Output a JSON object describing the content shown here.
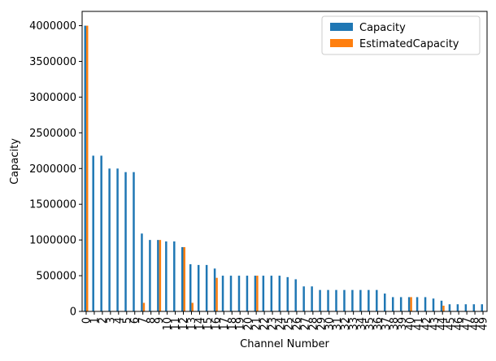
{
  "chart_data": {
    "type": "bar",
    "xlabel": "Channel Number",
    "ylabel": "Capacity",
    "ylim": [
      0,
      4200000
    ],
    "yticks": [
      0,
      500000,
      1000000,
      1500000,
      2000000,
      2500000,
      3000000,
      3500000,
      4000000
    ],
    "categories": [
      "0",
      "1",
      "2",
      "3",
      "4",
      "5",
      "6",
      "7",
      "8",
      "9",
      "10",
      "11",
      "12",
      "13",
      "14",
      "15",
      "16",
      "17",
      "18",
      "19",
      "20",
      "21",
      "22",
      "23",
      "24",
      "25",
      "26",
      "27",
      "28",
      "29",
      "30",
      "31",
      "32",
      "33",
      "34",
      "35",
      "36",
      "37",
      "38",
      "39",
      "40",
      "41",
      "42",
      "43",
      "44",
      "45",
      "46",
      "47",
      "48",
      "49"
    ],
    "series": [
      {
        "name": "Capacity",
        "color": "#1f77b4",
        "values": [
          4000000,
          2180000,
          2180000,
          2000000,
          2000000,
          1950000,
          1950000,
          1090000,
          1000000,
          1000000,
          980000,
          980000,
          900000,
          660000,
          650000,
          650000,
          600000,
          500000,
          500000,
          500000,
          500000,
          500000,
          500000,
          500000,
          500000,
          480000,
          450000,
          350000,
          350000,
          300000,
          300000,
          300000,
          300000,
          300000,
          300000,
          300000,
          300000,
          250000,
          200000,
          200000,
          200000,
          200000,
          200000,
          180000,
          150000,
          100000,
          100000,
          100000,
          100000,
          100000
        ]
      },
      {
        "name": "EstimatedCapacity",
        "color": "#ff7f0e",
        "values": [
          4000000,
          0,
          0,
          0,
          0,
          0,
          0,
          120000,
          0,
          1000000,
          0,
          0,
          900000,
          120000,
          0,
          0,
          470000,
          0,
          0,
          0,
          0,
          500000,
          0,
          0,
          0,
          0,
          0,
          0,
          0,
          0,
          0,
          0,
          0,
          0,
          0,
          0,
          0,
          0,
          0,
          0,
          200000,
          0,
          0,
          0,
          80000,
          0,
          0,
          0,
          0,
          0
        ]
      }
    ],
    "legend_position": "top-right",
    "grid": false
  }
}
